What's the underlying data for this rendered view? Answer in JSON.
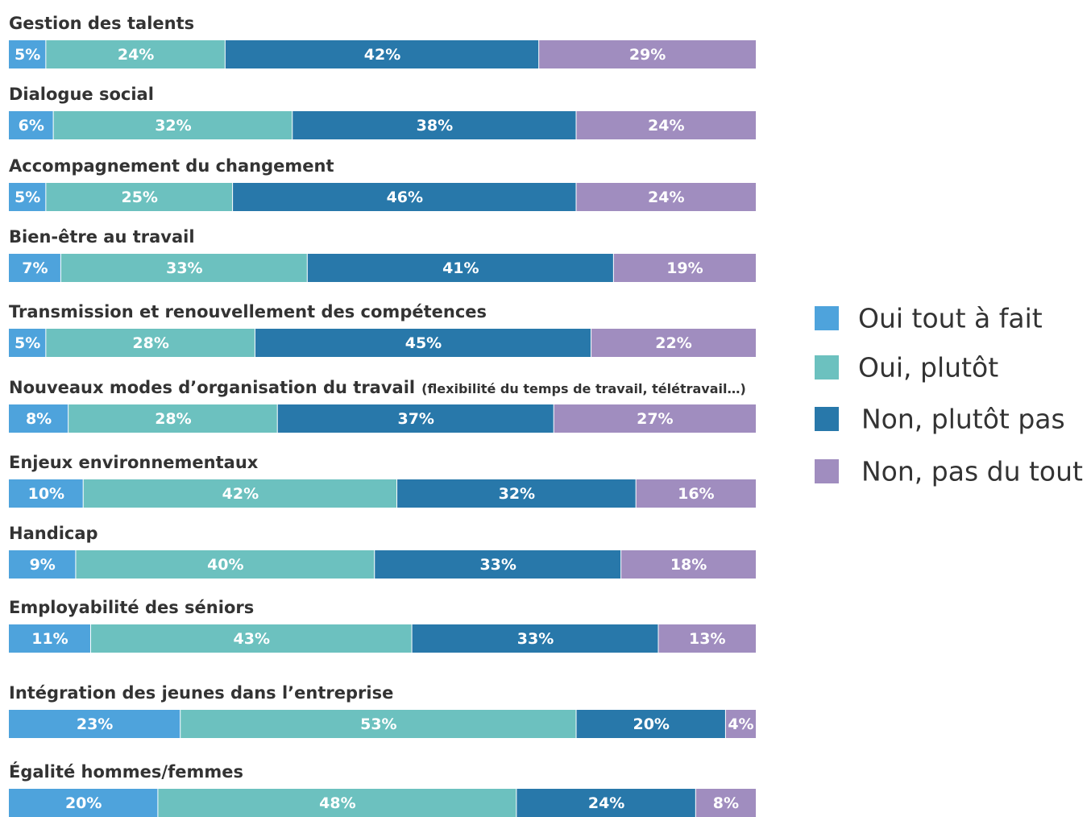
{
  "chart_data": {
    "type": "stacked-barh",
    "categories": [
      "Gestion des talents",
      "Dialogue social",
      "Accompagnement du changement",
      "Bien-être au travail",
      "Transmission et renouvellement des compétences",
      "Nouveaux modes d’organisation du travail",
      "Enjeux environnementaux",
      "Handicap",
      "Employabilité des séniors",
      "Intégration des jeunes dans l’entreprise",
      "Égalité hommes/femmes"
    ],
    "category_notes": [
      null,
      null,
      null,
      null,
      null,
      "(flexibilité du temps de travail, télétravail…)",
      null,
      null,
      null,
      null,
      null
    ],
    "xlim": [
      0,
      100
    ],
    "legend": "right",
    "series": [
      {
        "name": "Oui tout à fait",
        "color": "#4ea3dc",
        "values": [
          5,
          6,
          5,
          7,
          5,
          8,
          10,
          9,
          11,
          23,
          20
        ],
        "value_labels": [
          "5%",
          "6%",
          "5%",
          "7%",
          "5%",
          "8%",
          "10%",
          "9%",
          "11%",
          "23%",
          "20%"
        ]
      },
      {
        "name": "Oui, plutôt",
        "color": "#6cc1bf",
        "values": [
          24,
          32,
          25,
          33,
          28,
          28,
          42,
          40,
          43,
          53,
          48
        ],
        "value_labels": [
          "24%",
          "32%",
          "25%",
          "33%",
          "28%",
          "28%",
          "42%",
          "40%",
          "43%",
          "53%",
          "48%"
        ]
      },
      {
        "name": "Non, plutôt pas",
        "color": "#2878aa",
        "values": [
          42,
          38,
          46,
          41,
          45,
          37,
          32,
          33,
          33,
          20,
          24
        ],
        "value_labels": [
          "42%",
          "38%",
          "46%",
          "41%",
          "45%",
          "37%",
          "32%",
          "33%",
          "33%",
          "20%",
          "24%"
        ]
      },
      {
        "name": "Non, pas du tout",
        "color": "#a08dbf",
        "values": [
          29,
          24,
          24,
          19,
          22,
          27,
          16,
          18,
          13,
          4,
          8
        ],
        "value_labels": [
          "29%",
          "24%",
          "24%",
          "19%",
          "22%",
          "27%",
          "16%",
          "18%",
          "13%",
          "4%",
          "8%"
        ]
      }
    ]
  }
}
